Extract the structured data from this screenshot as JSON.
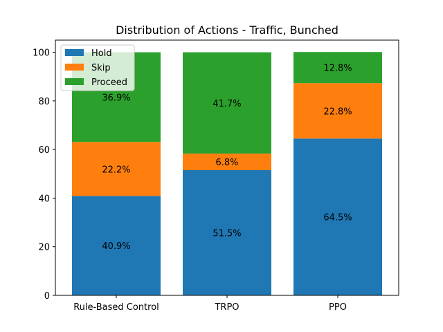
{
  "chart_data": {
    "type": "bar",
    "stacked": true,
    "title": "Distribution of Actions - Traffic, Bunched",
    "xlabel": "",
    "ylabel": "",
    "categories": [
      "Rule-Based Control",
      "TRPO",
      "PPO"
    ],
    "series": [
      {
        "name": "Hold",
        "color": "#1f77b4",
        "values": [
          40.9,
          51.5,
          64.5
        ],
        "labels": [
          "40.9%",
          "51.5%",
          "64.5%"
        ]
      },
      {
        "name": "Skip",
        "color": "#ff7f0e",
        "values": [
          22.2,
          6.8,
          22.8
        ],
        "labels": [
          "22.2%",
          "6.8%",
          "22.8%"
        ]
      },
      {
        "name": "Proceed",
        "color": "#2ca02c",
        "values": [
          36.9,
          41.7,
          12.8
        ],
        "labels": [
          "36.9%",
          "41.7%",
          "12.8%"
        ]
      }
    ],
    "ylim": [
      0,
      105
    ],
    "yticks": [
      0,
      20,
      40,
      60,
      80,
      100
    ],
    "grid": false,
    "legend": "top-left"
  }
}
